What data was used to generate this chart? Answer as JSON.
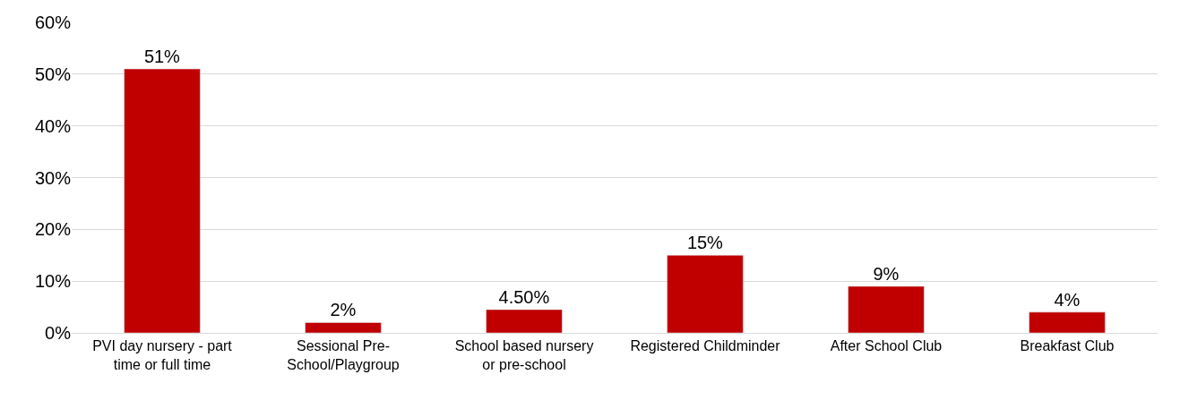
{
  "chart_data": {
    "type": "bar",
    "categories": [
      "PVI day nursery - part time or full time",
      "Sessional Pre-School/Playgroup",
      "School based nursery or pre-school",
      "Registered Childminder",
      "After School Club",
      "Breakfast Club"
    ],
    "values": [
      51,
      2,
      4.5,
      15,
      9,
      4
    ],
    "value_labels": [
      "51%",
      "2%",
      "4.50%",
      "15%",
      "9%",
      "4%"
    ],
    "color": "#c00000",
    "ylim": [
      0,
      60
    ],
    "yticks": [
      {
        "value": 0,
        "label": "0%"
      },
      {
        "value": 10,
        "label": "10%"
      },
      {
        "value": 20,
        "label": "20%"
      },
      {
        "value": 30,
        "label": "30%"
      },
      {
        "value": 40,
        "label": "40%"
      },
      {
        "value": 50,
        "label": "50%"
      },
      {
        "value": 60,
        "label": "60%"
      }
    ],
    "grid": "y"
  }
}
